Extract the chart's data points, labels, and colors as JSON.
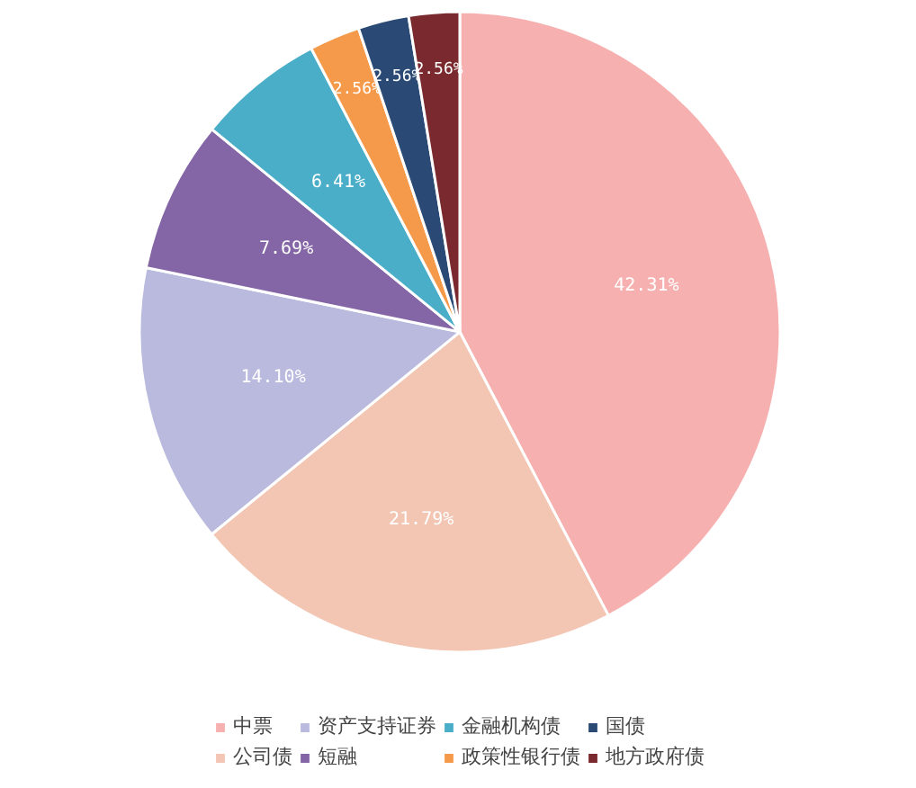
{
  "chart_data": {
    "type": "pie",
    "categories": [
      "中票",
      "公司债",
      "资产支持证券",
      "短融",
      "金融机构债",
      "政策性银行债",
      "国债",
      "地方政府债"
    ],
    "values": [
      42.31,
      21.79,
      14.1,
      7.69,
      6.41,
      2.56,
      2.56,
      2.56
    ],
    "colors": [
      "#f7b0b0",
      "#f3c6b4",
      "#b9bade",
      "#8465a5",
      "#4aaec8",
      "#f59a4a",
      "#2a4a75",
      "#7a2a2e"
    ],
    "value_labels": [
      "42.31%",
      "21.79%",
      "14.10%",
      "7.69%",
      "6.41%",
      "2.56%",
      "2.56%",
      "2.56%"
    ],
    "legend": "bottom"
  }
}
